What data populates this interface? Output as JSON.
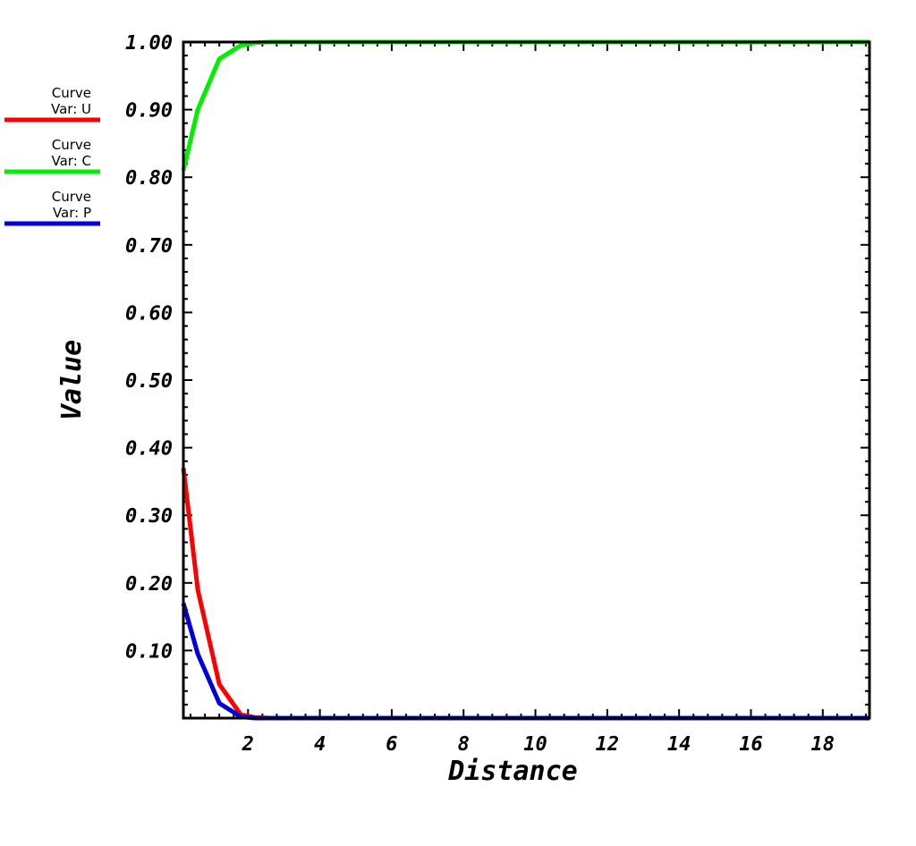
{
  "chart_data": {
    "type": "line",
    "xlabel": "Distance",
    "ylabel": "Value",
    "xlim": [
      0.2,
      19.3
    ],
    "ylim": [
      0.0,
      1.0
    ],
    "x_ticks": [
      2,
      4,
      6,
      8,
      10,
      12,
      14,
      16,
      18
    ],
    "x_tick_labels": [
      "2",
      "4",
      "6",
      "8",
      "10",
      "12",
      "14",
      "16",
      "18"
    ],
    "y_ticks": [
      0.1,
      0.2,
      0.3,
      0.4,
      0.5,
      0.6,
      0.7,
      0.8,
      0.9,
      1.0
    ],
    "y_tick_labels": [
      "0.10",
      "0.20",
      "0.30",
      "0.40",
      "0.50",
      "0.60",
      "0.70",
      "0.80",
      "0.90",
      "1.00"
    ],
    "grid": false,
    "legend_position": "left",
    "series": [
      {
        "name": "Curve\nVar: U",
        "legend_line1": "Curve",
        "legend_line2": "Var: U",
        "color": "#ff0000",
        "x": [
          0.2,
          0.6,
          1.2,
          1.8,
          2.2,
          2.6,
          4,
          6,
          8,
          10,
          12,
          14,
          16,
          18,
          19.3
        ],
        "y": [
          0.37,
          0.19,
          0.05,
          0.005,
          0.001,
          0.0,
          0.0,
          0.0,
          0.0,
          0.0,
          0.0,
          0.0,
          0.0,
          0.0,
          0.0
        ]
      },
      {
        "name": "Curve\nVar: C",
        "legend_line1": "Curve",
        "legend_line2": "Var: C",
        "color": "#00ee00",
        "x": [
          0.2,
          0.6,
          1.2,
          1.8,
          2.2,
          2.6,
          4,
          6,
          8,
          10,
          12,
          14,
          16,
          18,
          19.3
        ],
        "y": [
          0.81,
          0.9,
          0.975,
          0.995,
          0.999,
          1.0,
          1.0,
          1.0,
          1.0,
          1.0,
          1.0,
          1.0,
          1.0,
          1.0,
          1.0
        ]
      },
      {
        "name": "Curve\nVar: P",
        "legend_line1": "Curve",
        "legend_line2": "Var: P",
        "color": "#0000dd",
        "x": [
          0.2,
          0.6,
          1.2,
          1.8,
          2.2,
          2.6,
          4,
          6,
          8,
          10,
          12,
          14,
          16,
          18,
          19.3
        ],
        "y": [
          0.17,
          0.095,
          0.022,
          0.002,
          0.0,
          0.0,
          0.0,
          0.0,
          0.0,
          0.0,
          0.0,
          0.0,
          0.0,
          0.0,
          0.0
        ]
      }
    ]
  }
}
